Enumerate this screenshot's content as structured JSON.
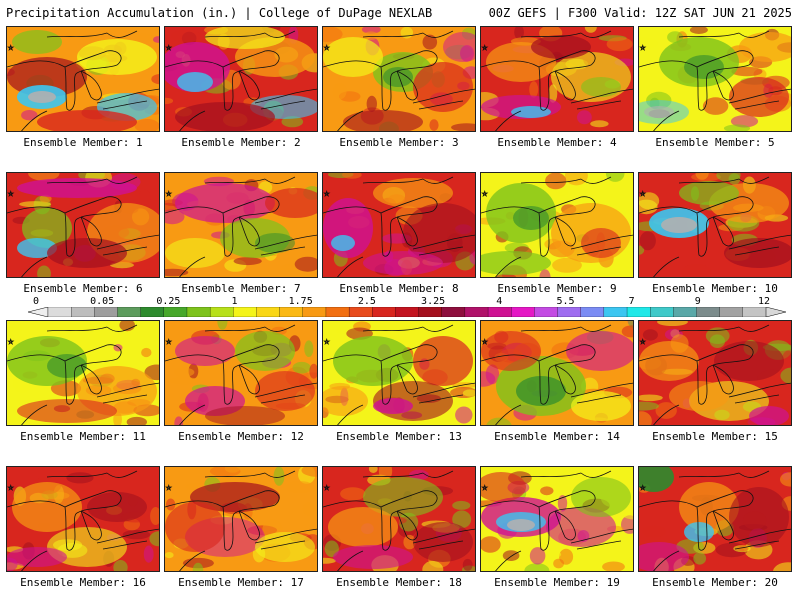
{
  "header": {
    "left": "Precipitation Accumulation (in.) | College of DuPage NEXLAB",
    "right": "00Z GEFS | F300 Valid: 12Z SAT JUN 21 2025"
  },
  "colorbar": {
    "labels": [
      "0",
      "0.05",
      "0.25",
      "1",
      "1.75",
      "2.5",
      "3.25",
      "4",
      "5.5",
      "7",
      "9",
      "12"
    ],
    "colors": [
      "#dcdcdc",
      "#bdbdbd",
      "#9e9e9e",
      "#5d9c5d",
      "#2e8b2e",
      "#47a82a",
      "#7ec31c",
      "#b7e01a",
      "#f4f41a",
      "#f9d716",
      "#fbb914",
      "#f89a13",
      "#f26f11",
      "#e84b1c",
      "#d8261e",
      "#c31420",
      "#a4101e",
      "#8e0f3e",
      "#b0126a",
      "#cf1293",
      "#e518c5",
      "#c34be3",
      "#9f6df0",
      "#7b8cf4",
      "#3cc6f1",
      "#20e8e8",
      "#3fc9c9",
      "#5aa8a8",
      "#7c8c8c",
      "#a2a2a2",
      "#c4c4c4"
    ]
  },
  "members": [
    {
      "label": "Ensemble Member: 1"
    },
    {
      "label": "Ensemble Member: 2"
    },
    {
      "label": "Ensemble Member: 3"
    },
    {
      "label": "Ensemble Member: 4"
    },
    {
      "label": "Ensemble Member: 5"
    },
    {
      "label": "Ensemble Member: 6"
    },
    {
      "label": "Ensemble Member: 7"
    },
    {
      "label": "Ensemble Member: 8"
    },
    {
      "label": "Ensemble Member: 9"
    },
    {
      "label": "Ensemble Member: 10"
    },
    {
      "label": "Ensemble Member: 11"
    },
    {
      "label": "Ensemble Member: 12"
    },
    {
      "label": "Ensemble Member: 13"
    },
    {
      "label": "Ensemble Member: 14"
    },
    {
      "label": "Ensemble Member: 15"
    },
    {
      "label": "Ensemble Member: 16"
    },
    {
      "label": "Ensemble Member: 17"
    },
    {
      "label": "Ensemble Member: 18"
    },
    {
      "label": "Ensemble Member: 19"
    },
    {
      "label": "Ensemble Member: 20"
    }
  ]
}
